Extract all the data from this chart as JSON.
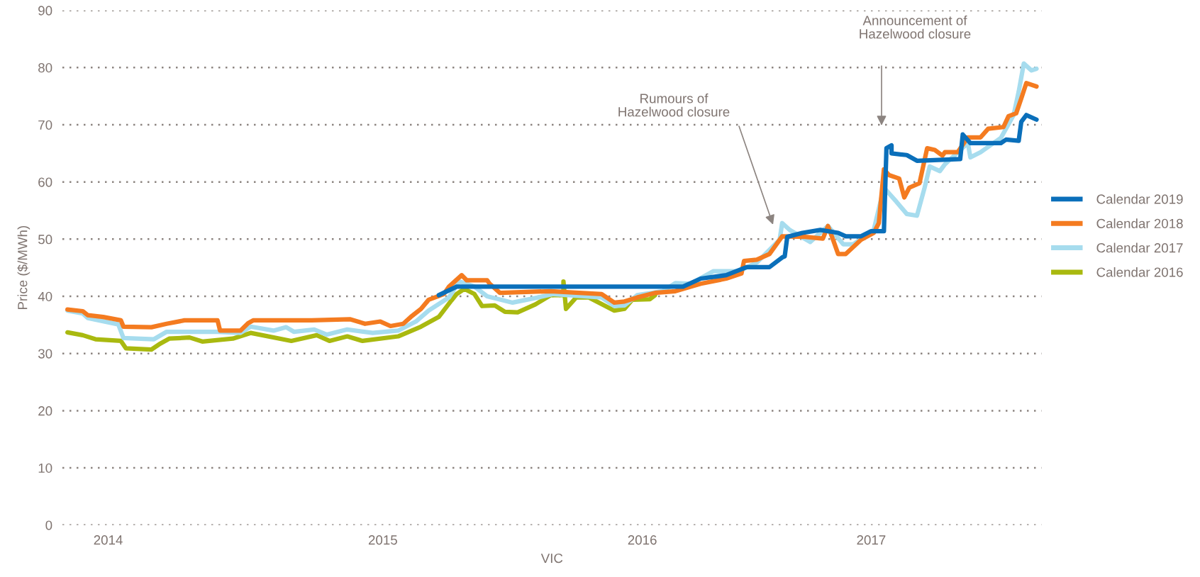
{
  "chart_data": {
    "type": "line",
    "xlabel": "VIC",
    "ylabel": "Price ($/MWh)",
    "xlim": [
      2013.82,
      2017.67
    ],
    "xticks": [
      {
        "value": 2014.0,
        "label": "2014"
      },
      {
        "value": 2015.08,
        "label": "2015"
      },
      {
        "value": 2016.1,
        "label": "2016"
      },
      {
        "value": 2017.0,
        "label": "2017"
      }
    ],
    "ylim": [
      0,
      90
    ],
    "yticks": [
      0,
      10,
      20,
      30,
      40,
      50,
      60,
      70,
      80,
      90
    ],
    "grid": "y",
    "legend": "right",
    "line_style": "solid",
    "marker": "none",
    "annotations": [
      "Rumours of\nHazelwood closure",
      "Announcement of\nHazelwood closure"
    ],
    "series": [
      {
        "name": "Calendar 2019",
        "color": "#0a6fba",
        "x": [
          2015.3,
          2015.37,
          2016.26,
          2016.33,
          2016.43,
          2016.51,
          2016.6,
          2016.65,
          2016.66,
          2016.67,
          2016.73,
          2016.8,
          2016.87,
          2016.9,
          2016.96,
          2017.0,
          2017.05,
          2017.06,
          2017.08,
          2017.08,
          2017.14,
          2017.18,
          2017.35,
          2017.36,
          2017.39,
          2017.51,
          2017.53,
          2017.58,
          2017.59,
          2017.61,
          2017.65
        ],
        "values": [
          40.2,
          41.7,
          41.7,
          43.1,
          43.7,
          45.1,
          45.1,
          46.8,
          47.0,
          50.4,
          51.1,
          51.6,
          51.1,
          50.5,
          50.5,
          51.4,
          51.4,
          65.9,
          66.4,
          65.0,
          64.7,
          63.7,
          64.0,
          68.3,
          66.8,
          66.8,
          67.4,
          67.2,
          70.5,
          71.7,
          70.9
        ]
      },
      {
        "name": "Calendar 2018",
        "color": "#f47b20",
        "x": [
          2013.84,
          2013.9,
          2013.92,
          2013.98,
          2014.05,
          2014.06,
          2014.17,
          2014.23,
          2014.3,
          2014.43,
          2014.44,
          2014.52,
          2014.55,
          2014.57,
          2014.8,
          2014.95,
          2015.01,
          2015.07,
          2015.11,
          2015.16,
          2015.19,
          2015.23,
          2015.26,
          2015.32,
          2015.34,
          2015.39,
          2015.41,
          2015.49,
          2015.5,
          2015.54,
          2015.74,
          2015.94,
          2015.99,
          2016.03,
          2016.08,
          2016.15,
          2016.23,
          2016.33,
          2016.43,
          2016.49,
          2016.5,
          2016.55,
          2016.6,
          2016.65,
          2016.74,
          2016.81,
          2016.83,
          2016.85,
          2016.87,
          2016.9,
          2016.96,
          2017.01,
          2017.03,
          2017.05,
          2017.07,
          2017.11,
          2017.13,
          2017.15,
          2017.19,
          2017.22,
          2017.25,
          2017.28,
          2017.29,
          2017.34,
          2017.38,
          2017.43,
          2017.46,
          2017.52,
          2017.54,
          2017.57,
          2017.59,
          2017.61,
          2017.65
        ],
        "values": [
          37.7,
          37.4,
          36.7,
          36.4,
          35.8,
          34.7,
          34.6,
          35.2,
          35.8,
          35.8,
          34.0,
          34.0,
          35.3,
          35.8,
          35.8,
          36.0,
          35.2,
          35.6,
          34.8,
          35.2,
          36.4,
          37.8,
          39.4,
          40.4,
          41.7,
          43.7,
          42.8,
          42.8,
          42.2,
          40.6,
          40.9,
          40.4,
          38.9,
          39.1,
          39.8,
          40.6,
          40.9,
          42.2,
          43.1,
          44.0,
          46.2,
          46.4,
          47.4,
          50.5,
          50.4,
          50.1,
          52.3,
          49.9,
          47.4,
          47.4,
          49.9,
          51.1,
          52.8,
          62.2,
          61.2,
          60.6,
          57.3,
          59.0,
          59.8,
          65.9,
          65.6,
          64.6,
          65.2,
          65.2,
          67.8,
          67.8,
          69.3,
          69.6,
          71.5,
          72.0,
          74.6,
          77.3,
          76.7
        ]
      },
      {
        "name": "Calendar 2017",
        "color": "#a6dcee",
        "x": [
          2013.84,
          2013.9,
          2013.92,
          2014.04,
          2014.06,
          2014.18,
          2014.23,
          2014.43,
          2014.52,
          2014.56,
          2014.65,
          2014.7,
          2014.73,
          2014.81,
          2014.86,
          2014.94,
          2015.04,
          2015.14,
          2015.21,
          2015.26,
          2015.34,
          2015.38,
          2015.44,
          2015.49,
          2015.59,
          2015.69,
          2015.75,
          2015.94,
          2015.99,
          2016.03,
          2016.08,
          2016.18,
          2016.23,
          2016.29,
          2016.38,
          2016.48,
          2016.55,
          2016.64,
          2016.65,
          2016.68,
          2016.76,
          2016.83,
          2016.89,
          2016.93,
          2017.01,
          2017.05,
          2017.1,
          2017.14,
          2017.18,
          2017.21,
          2017.23,
          2017.27,
          2017.29,
          2017.38,
          2017.39,
          2017.43,
          2017.51,
          2017.56,
          2017.58,
          2017.6,
          2017.63,
          2017.65
        ],
        "values": [
          37.5,
          37.0,
          36.2,
          35.1,
          32.7,
          32.5,
          33.8,
          33.8,
          33.6,
          34.7,
          34.0,
          34.6,
          33.8,
          34.2,
          33.3,
          34.2,
          33.6,
          34.0,
          35.6,
          37.5,
          39.8,
          42.6,
          41.7,
          40.0,
          38.9,
          39.8,
          40.4,
          39.8,
          38.3,
          38.4,
          40.2,
          40.9,
          42.3,
          42.2,
          44.4,
          44.4,
          45.9,
          49.9,
          52.8,
          51.6,
          49.5,
          52.3,
          49.1,
          49.1,
          51.6,
          59.0,
          56.5,
          54.4,
          54.1,
          59.0,
          62.7,
          61.9,
          63.1,
          66.8,
          64.3,
          65.2,
          67.7,
          71.7,
          75.8,
          80.7,
          79.5,
          79.8
        ]
      },
      {
        "name": "Calendar 2016",
        "color": "#a9b90f",
        "x": [
          2013.84,
          2013.9,
          2013.95,
          2014.05,
          2014.07,
          2014.17,
          2014.2,
          2014.24,
          2014.32,
          2014.37,
          2014.49,
          2014.56,
          2014.72,
          2014.82,
          2014.87,
          2014.94,
          2015.0,
          2015.14,
          2015.23,
          2015.3,
          2015.35,
          2015.37,
          2015.4,
          2015.44,
          2015.47,
          2015.52,
          2015.56,
          2015.61,
          2015.68,
          2015.74,
          2015.79,
          2015.79,
          2015.8,
          2015.84,
          2015.89,
          2015.99,
          2016.03,
          2016.06,
          2016.13,
          2016.15
        ],
        "values": [
          33.7,
          33.2,
          32.5,
          32.2,
          30.9,
          30.7,
          31.6,
          32.6,
          32.8,
          32.1,
          32.6,
          33.6,
          32.2,
          33.2,
          32.2,
          33.0,
          32.2,
          33.0,
          34.7,
          36.4,
          39.3,
          40.4,
          41.3,
          40.4,
          38.3,
          38.4,
          37.3,
          37.2,
          38.6,
          40.2,
          40.2,
          42.6,
          37.8,
          39.8,
          39.8,
          37.5,
          37.8,
          39.4,
          39.5,
          40.2
        ]
      }
    ]
  }
}
